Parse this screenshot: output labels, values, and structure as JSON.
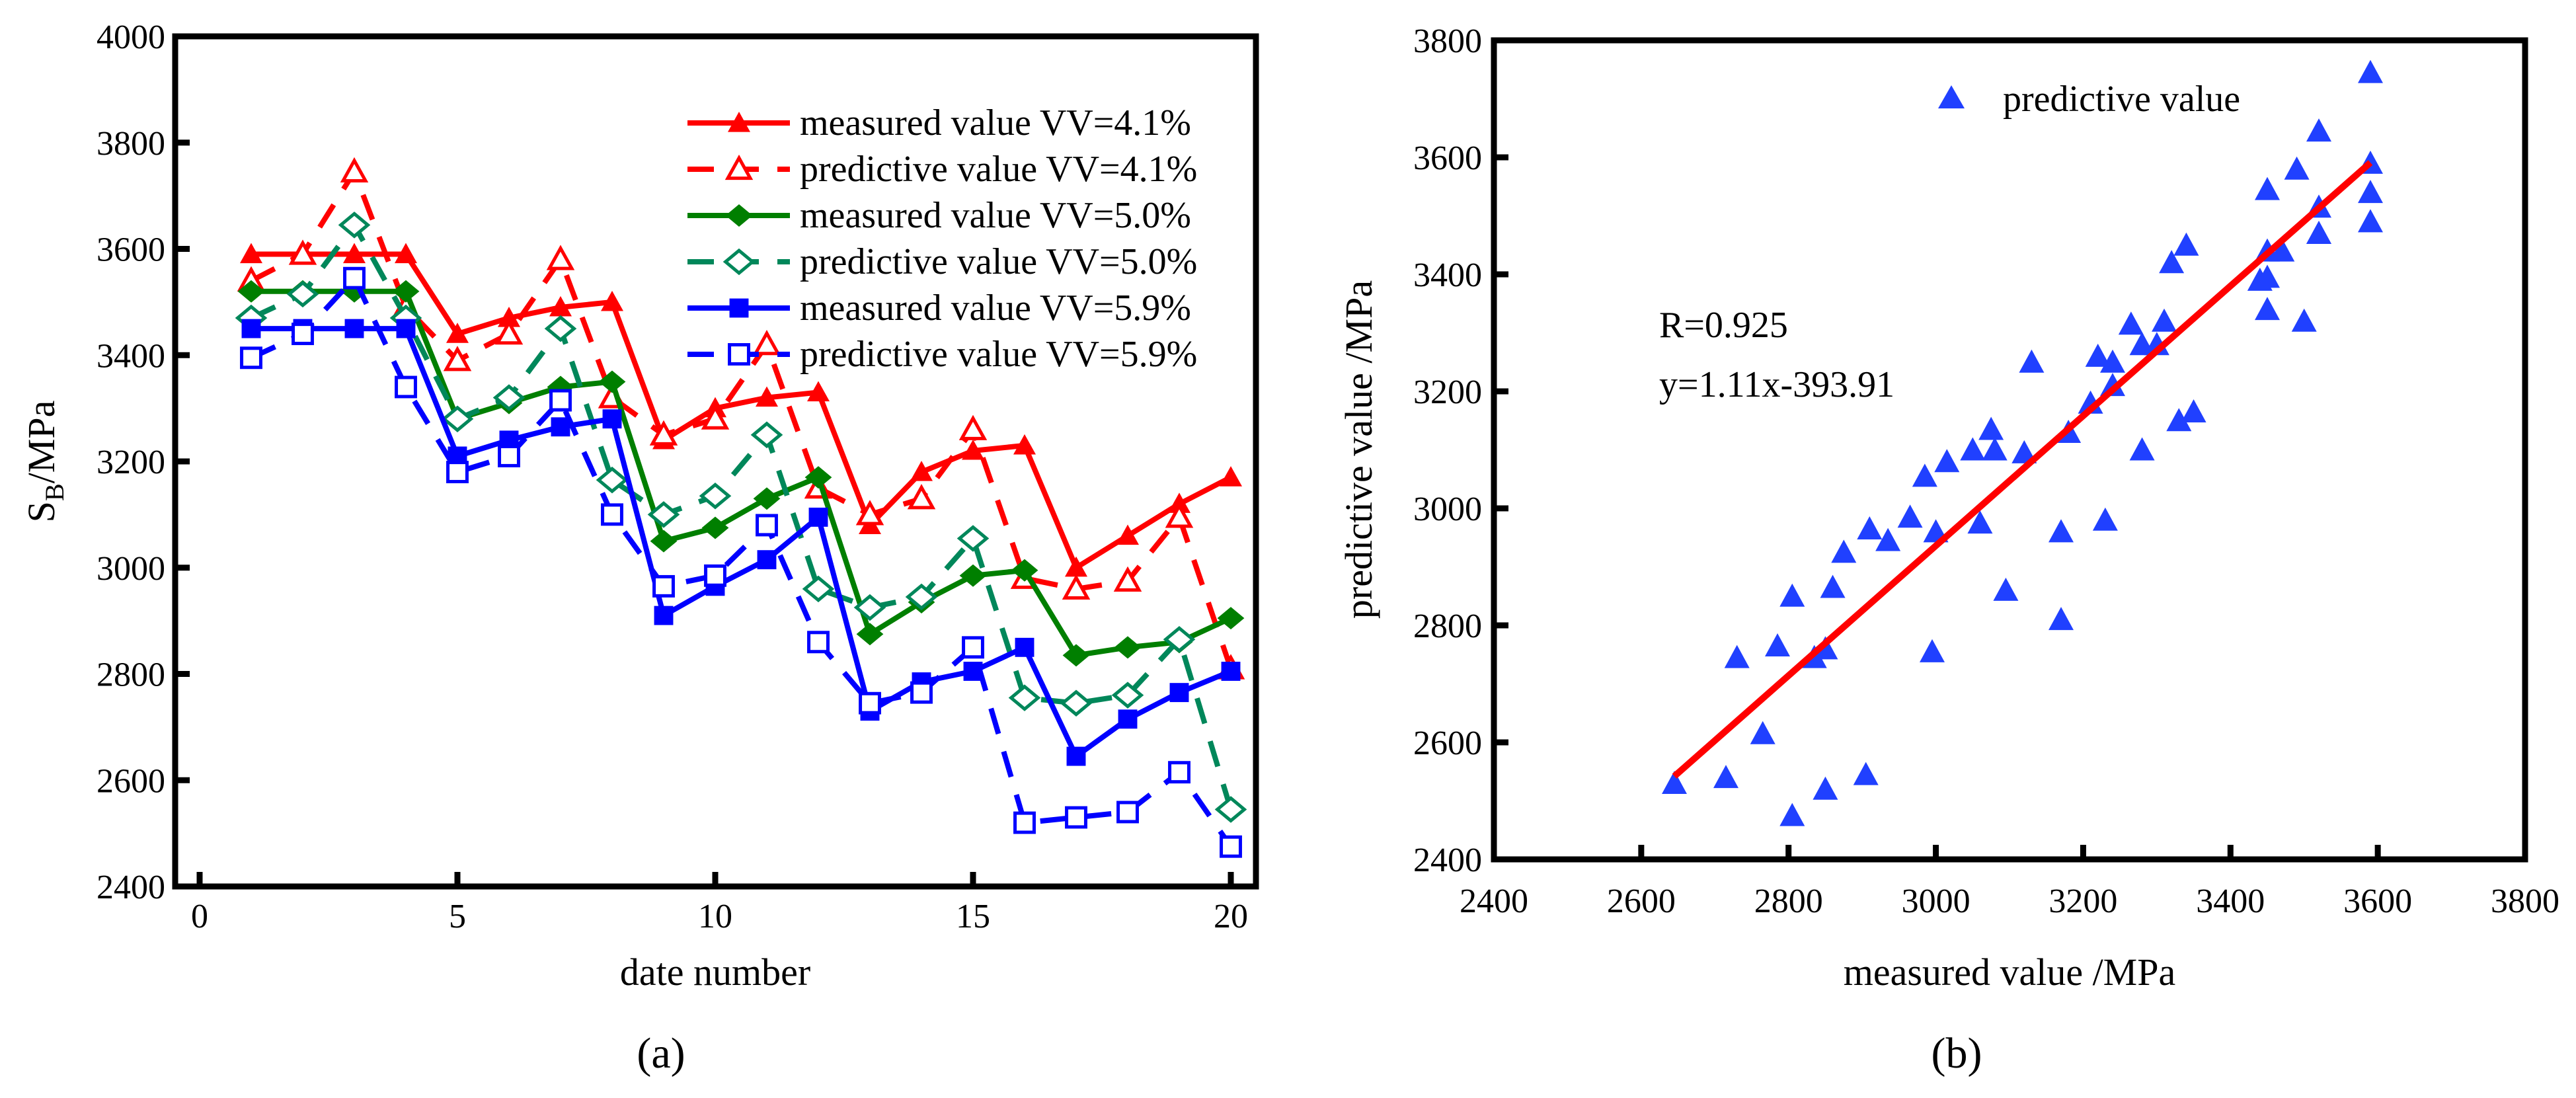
{
  "chart_data": [
    {
      "type": "line",
      "panel_label": "(a)",
      "xlabel": "date number",
      "ylabel_main": "S",
      "ylabel_sub": "B",
      "ylabel_unit": "/MPa",
      "xlim": [
        0,
        20.6
      ],
      "ylim": [
        2400,
        4000
      ],
      "xticks": [
        0,
        5,
        10,
        15,
        20
      ],
      "yticks": [
        2400,
        2600,
        2800,
        3000,
        3200,
        3400,
        3600,
        3800,
        4000
      ],
      "legend_position": "top-right",
      "x": [
        1,
        2,
        3,
        4,
        5,
        6,
        7,
        8,
        9,
        10,
        11,
        12,
        13,
        14,
        15,
        16,
        17,
        18,
        19,
        20
      ],
      "series": [
        {
          "name": "measured value VV=4.1%",
          "color": "#ff0000",
          "dash": false,
          "marker": "triangle",
          "filled": true,
          "values": [
            3590,
            3590,
            3590,
            3590,
            3440,
            3470,
            3490,
            3500,
            3240,
            3300,
            3320,
            3330,
            3080,
            3180,
            3220,
            3230,
            3000,
            3060,
            3120,
            3170
          ]
        },
        {
          "name": "predictive value VV=4.1%",
          "color": "#ff0000",
          "dash": true,
          "marker": "triangle",
          "filled": false,
          "values": [
            3540,
            3590,
            3745,
            3490,
            3390,
            3440,
            3580,
            3320,
            3250,
            3280,
            3420,
            3150,
            3100,
            3130,
            3260,
            2980,
            2960,
            2975,
            3095,
            2810
          ]
        },
        {
          "name": "measured value VV=5.0%",
          "color": "#007f00",
          "dash": false,
          "marker": "diamond",
          "filled": true,
          "values": [
            3520,
            3520,
            3520,
            3520,
            3280,
            3310,
            3340,
            3350,
            3050,
            3075,
            3130,
            3170,
            2875,
            2935,
            2985,
            2995,
            2835,
            2850,
            2860,
            2905
          ]
        },
        {
          "name": "predictive value VV=5.0%",
          "color": "#00875a",
          "dash": true,
          "marker": "diamond",
          "filled": false,
          "values": [
            3470,
            3515,
            3645,
            3470,
            3280,
            3320,
            3450,
            3165,
            3100,
            3135,
            3250,
            2960,
            2925,
            2945,
            3055,
            2755,
            2745,
            2760,
            2865,
            2545
          ]
        },
        {
          "name": "measured value VV=5.9%",
          "color": "#0000ff",
          "dash": false,
          "marker": "square",
          "filled": true,
          "values": [
            3450,
            3450,
            3450,
            3450,
            3210,
            3240,
            3265,
            3280,
            2910,
            2965,
            3015,
            3095,
            2730,
            2785,
            2805,
            2850,
            2645,
            2715,
            2765,
            2805
          ]
        },
        {
          "name": "predictive value VV=5.9%",
          "color": "#0000ff",
          "dash": true,
          "marker": "square",
          "filled": false,
          "values": [
            3395,
            3440,
            3545,
            3340,
            3180,
            3210,
            3315,
            3100,
            2965,
            2985,
            3080,
            2860,
            2745,
            2765,
            2850,
            2520,
            2530,
            2540,
            2615,
            2475
          ]
        }
      ]
    },
    {
      "type": "scatter",
      "panel_label": "(b)",
      "xlabel": "measured value /MPa",
      "ylabel": "predictive value /MPa",
      "xlim": [
        2400,
        3800
      ],
      "ylim": [
        2400,
        3800
      ],
      "xticks": [
        2400,
        2600,
        2800,
        3000,
        3200,
        3400,
        3600,
        3800
      ],
      "yticks": [
        2400,
        2600,
        2800,
        3000,
        3200,
        3400,
        3600,
        3800
      ],
      "legend_position": "top-center",
      "series_name": "predictive value",
      "marker_color": "#2040ff",
      "fit_color": "#ff0000",
      "annotation_r": "R=0.925",
      "annotation_eq": "y=1.11x-393.91",
      "fit": {
        "slope": 1.11,
        "intercept": -393.91,
        "x_range": [
          2645,
          3590
        ]
      },
      "points": [
        [
          3590,
          3540
        ],
        [
          3590,
          3590
        ],
        [
          3590,
          3745
        ],
        [
          3590,
          3490
        ],
        [
          3440,
          3390
        ],
        [
          3470,
          3440
        ],
        [
          3490,
          3580
        ],
        [
          3500,
          3320
        ],
        [
          3240,
          3250
        ],
        [
          3300,
          3280
        ],
        [
          3320,
          3420
        ],
        [
          3330,
          3150
        ],
        [
          3080,
          3100
        ],
        [
          3180,
          3130
        ],
        [
          3220,
          3260
        ],
        [
          3230,
          2980
        ],
        [
          3000,
          2960
        ],
        [
          3060,
          2975
        ],
        [
          3120,
          3095
        ],
        [
          3170,
          2810
        ],
        [
          3520,
          3470
        ],
        [
          3520,
          3515
        ],
        [
          3520,
          3645
        ],
        [
          3520,
          3470
        ],
        [
          3280,
          3280
        ],
        [
          3310,
          3320
        ],
        [
          3340,
          3450
        ],
        [
          3350,
          3165
        ],
        [
          3050,
          3100
        ],
        [
          3075,
          3135
        ],
        [
          3130,
          3250
        ],
        [
          3170,
          2960
        ],
        [
          2875,
          2925
        ],
        [
          2935,
          2945
        ],
        [
          2985,
          3055
        ],
        [
          2995,
          2755
        ],
        [
          2835,
          2745
        ],
        [
          2850,
          2760
        ],
        [
          2860,
          2865
        ],
        [
          2905,
          2545
        ],
        [
          3450,
          3395
        ],
        [
          3450,
          3440
        ],
        [
          3450,
          3545
        ],
        [
          3450,
          3340
        ],
        [
          3210,
          3180
        ],
        [
          3240,
          3210
        ],
        [
          3265,
          3315
        ],
        [
          3280,
          3100
        ],
        [
          2910,
          2965
        ],
        [
          2965,
          2985
        ],
        [
          3015,
          3080
        ],
        [
          3095,
          2860
        ],
        [
          2730,
          2745
        ],
        [
          2785,
          2765
        ],
        [
          2805,
          2850
        ],
        [
          2850,
          2520
        ],
        [
          2645,
          2530
        ],
        [
          2715,
          2540
        ],
        [
          2765,
          2615
        ],
        [
          2805,
          2475
        ]
      ]
    }
  ]
}
